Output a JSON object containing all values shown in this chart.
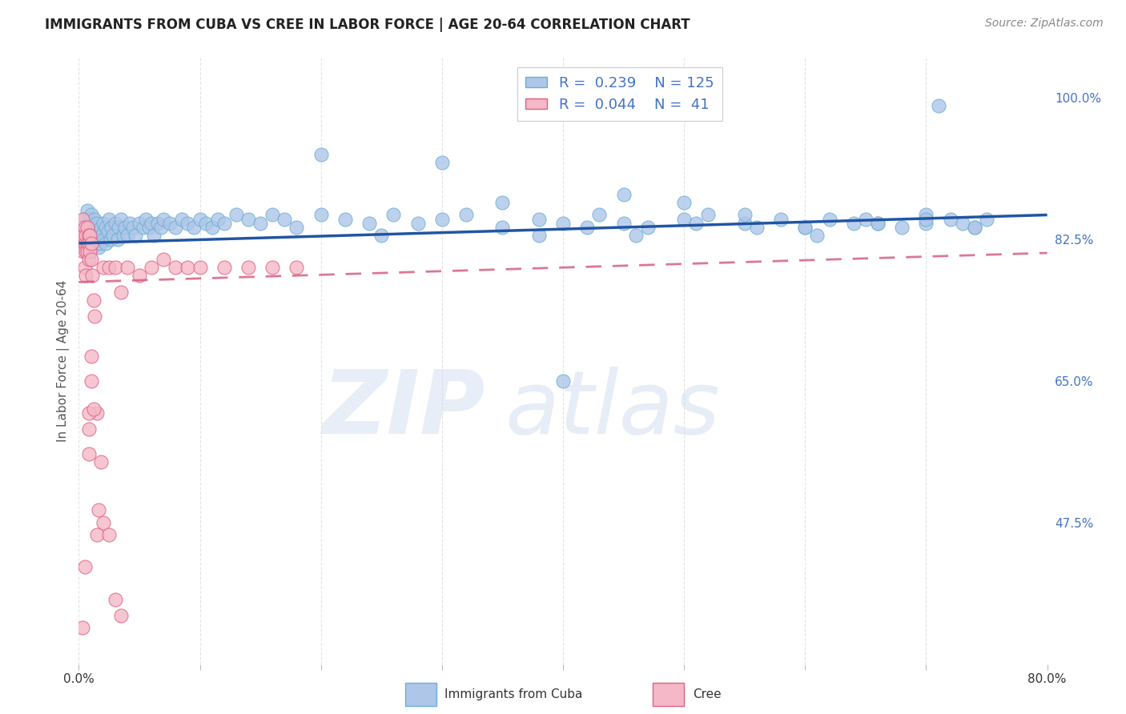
{
  "title": "IMMIGRANTS FROM CUBA VS CREE IN LABOR FORCE | AGE 20-64 CORRELATION CHART",
  "source_text": "Source: ZipAtlas.com",
  "ylabel": "In Labor Force | Age 20-64",
  "watermark_zip": "ZIP",
  "watermark_atlas": "atlas",
  "xlim": [
    0.0,
    0.8
  ],
  "ylim": [
    0.3,
    1.05
  ],
  "x_ticks": [
    0.0,
    0.1,
    0.2,
    0.3,
    0.4,
    0.5,
    0.6,
    0.7,
    0.8
  ],
  "x_tick_labels": [
    "0.0%",
    "",
    "",
    "",
    "",
    "",
    "",
    "",
    "80.0%"
  ],
  "y_ticks_right": [
    0.475,
    0.65,
    0.825,
    1.0
  ],
  "y_tick_labels_right": [
    "47.5%",
    "65.0%",
    "82.5%",
    "100.0%"
  ],
  "background_color": "#ffffff",
  "grid_color": "#dddddd",
  "cuba_fill_color": "#aec6e8",
  "cuba_edge_color": "#6baed6",
  "cree_fill_color": "#f4b8c8",
  "cree_edge_color": "#e06080",
  "cuba_line_color": "#2155a3",
  "cree_line_color": "#d46080",
  "legend_R_cuba": "0.239",
  "legend_N_cuba": "125",
  "legend_R_cree": "0.044",
  "legend_N_cree": " 41",
  "title_color": "#222222",
  "axis_label_color": "#555555",
  "right_tick_color": "#4472c4",
  "cuba_trend_x0": 0.0,
  "cuba_trend_x1": 0.8,
  "cuba_trend_y0": 0.82,
  "cuba_trend_y1": 0.855,
  "cree_trend_x0": 0.0,
  "cree_trend_x1": 0.8,
  "cree_trend_y0": 0.772,
  "cree_trend_y1": 0.808,
  "cuba_points_x": [
    0.003,
    0.004,
    0.005,
    0.005,
    0.006,
    0.006,
    0.007,
    0.007,
    0.007,
    0.008,
    0.008,
    0.008,
    0.009,
    0.009,
    0.01,
    0.01,
    0.01,
    0.011,
    0.011,
    0.012,
    0.012,
    0.013,
    0.013,
    0.014,
    0.014,
    0.015,
    0.015,
    0.016,
    0.016,
    0.017,
    0.018,
    0.018,
    0.019,
    0.02,
    0.021,
    0.022,
    0.022,
    0.024,
    0.025,
    0.026,
    0.027,
    0.028,
    0.03,
    0.032,
    0.033,
    0.035,
    0.037,
    0.038,
    0.04,
    0.042,
    0.045,
    0.047,
    0.05,
    0.053,
    0.055,
    0.058,
    0.06,
    0.062,
    0.065,
    0.068,
    0.07,
    0.075,
    0.08,
    0.085,
    0.09,
    0.095,
    0.1,
    0.105,
    0.11,
    0.115,
    0.12,
    0.13,
    0.14,
    0.15,
    0.16,
    0.17,
    0.18,
    0.2,
    0.22,
    0.24,
    0.26,
    0.28,
    0.3,
    0.32,
    0.35,
    0.38,
    0.4,
    0.43,
    0.45,
    0.47,
    0.5,
    0.52,
    0.55,
    0.58,
    0.6,
    0.62,
    0.64,
    0.66,
    0.68,
    0.7,
    0.71,
    0.72,
    0.73,
    0.74,
    0.75,
    0.4,
    0.3,
    0.2,
    0.45,
    0.35,
    0.25,
    0.5,
    0.55,
    0.6,
    0.65,
    0.7,
    0.38,
    0.42,
    0.46,
    0.51,
    0.56,
    0.61,
    0.66,
    0.7,
    0.74
  ],
  "cuba_points_y": [
    0.83,
    0.845,
    0.825,
    0.85,
    0.84,
    0.82,
    0.86,
    0.835,
    0.815,
    0.85,
    0.83,
    0.82,
    0.84,
    0.83,
    0.855,
    0.84,
    0.82,
    0.835,
    0.815,
    0.845,
    0.825,
    0.85,
    0.83,
    0.84,
    0.82,
    0.845,
    0.83,
    0.835,
    0.815,
    0.825,
    0.84,
    0.82,
    0.83,
    0.845,
    0.825,
    0.84,
    0.82,
    0.835,
    0.85,
    0.825,
    0.84,
    0.83,
    0.845,
    0.825,
    0.84,
    0.85,
    0.83,
    0.84,
    0.83,
    0.845,
    0.84,
    0.83,
    0.845,
    0.84,
    0.85,
    0.84,
    0.845,
    0.83,
    0.845,
    0.84,
    0.85,
    0.845,
    0.84,
    0.85,
    0.845,
    0.84,
    0.85,
    0.845,
    0.84,
    0.85,
    0.845,
    0.855,
    0.85,
    0.845,
    0.855,
    0.85,
    0.84,
    0.855,
    0.85,
    0.845,
    0.855,
    0.845,
    0.85,
    0.855,
    0.84,
    0.85,
    0.845,
    0.855,
    0.845,
    0.84,
    0.85,
    0.855,
    0.845,
    0.85,
    0.84,
    0.85,
    0.845,
    0.845,
    0.84,
    0.855,
    0.99,
    0.85,
    0.845,
    0.84,
    0.85,
    0.65,
    0.92,
    0.93,
    0.88,
    0.87,
    0.83,
    0.87,
    0.855,
    0.84,
    0.85,
    0.845,
    0.83,
    0.84,
    0.83,
    0.845,
    0.84,
    0.83,
    0.845,
    0.85,
    0.84
  ],
  "cree_points_x": [
    0.002,
    0.003,
    0.003,
    0.004,
    0.004,
    0.005,
    0.005,
    0.005,
    0.006,
    0.006,
    0.006,
    0.007,
    0.007,
    0.007,
    0.008,
    0.008,
    0.008,
    0.009,
    0.009,
    0.01,
    0.01,
    0.011,
    0.012,
    0.013,
    0.015,
    0.018,
    0.02,
    0.025,
    0.03,
    0.035,
    0.04,
    0.05,
    0.06,
    0.07,
    0.08,
    0.09,
    0.1,
    0.12,
    0.14,
    0.16,
    0.18
  ],
  "cree_points_y": [
    0.84,
    0.82,
    0.85,
    0.81,
    0.83,
    0.84,
    0.82,
    0.79,
    0.83,
    0.81,
    0.78,
    0.84,
    0.82,
    0.81,
    0.83,
    0.8,
    0.82,
    0.83,
    0.81,
    0.82,
    0.8,
    0.78,
    0.75,
    0.73,
    0.61,
    0.55,
    0.79,
    0.79,
    0.79,
    0.76,
    0.79,
    0.78,
    0.79,
    0.8,
    0.79,
    0.79,
    0.79,
    0.79,
    0.79,
    0.79,
    0.79
  ],
  "cree_low_x": [
    0.003,
    0.005,
    0.008,
    0.008,
    0.008,
    0.01,
    0.01,
    0.012,
    0.015,
    0.016,
    0.02,
    0.025,
    0.03,
    0.035
  ],
  "cree_low_y": [
    0.345,
    0.42,
    0.59,
    0.56,
    0.61,
    0.65,
    0.68,
    0.615,
    0.46,
    0.49,
    0.475,
    0.46,
    0.38,
    0.36
  ]
}
